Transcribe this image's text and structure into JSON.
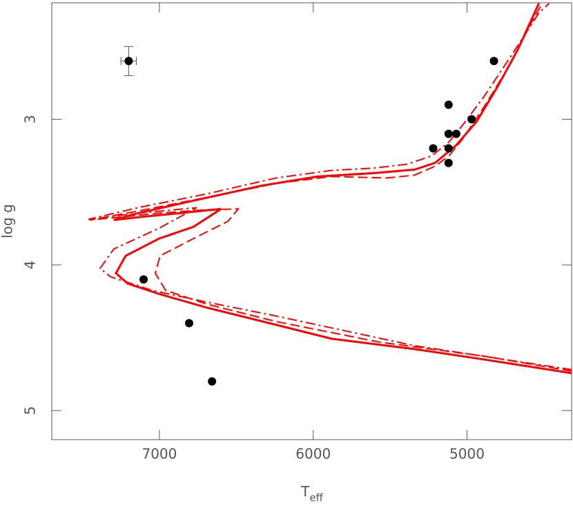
{
  "chart_data": {
    "type": "line",
    "xlabel": "T",
    "xlabel_sub": "eff",
    "ylabel": "log g",
    "xlim": [
      7700,
      4320
    ],
    "ylim": [
      2.2,
      5.2
    ],
    "xticks": [
      7000,
      6000,
      5000
    ],
    "yticks": [
      3,
      4,
      5
    ],
    "series": [
      {
        "color": "#ff0000",
        "style": "solid",
        "x": [
          4317,
          4892,
          5342,
          5881,
          6240,
          6690,
          7004,
          7207,
          7283,
          7220,
          7004,
          6780,
          6600,
          6870,
          7139,
          7297,
          7139,
          6780,
          6330,
          5971,
          5611,
          5342,
          5207,
          5072,
          4937,
          4802,
          4668,
          4533
        ],
        "values": [
          4.744,
          4.649,
          4.578,
          4.507,
          4.412,
          4.294,
          4.199,
          4.128,
          4.057,
          3.938,
          3.82,
          3.739,
          3.616,
          3.645,
          3.673,
          3.692,
          3.645,
          3.559,
          3.455,
          3.393,
          3.37,
          3.346,
          3.299,
          3.18,
          3.014,
          2.777,
          2.517,
          2.204
        ]
      },
      {
        "color": "#ff0000",
        "style": "dashed",
        "x": [
          4317,
          4892,
          5566,
          6241,
          6690,
          6960,
          7027,
          6996,
          6780,
          6555,
          6488,
          6690,
          7004,
          7454,
          7139,
          6690,
          6241,
          5881,
          5521,
          5342,
          5207,
          5117,
          5027,
          4892,
          4713,
          4578,
          4510
        ],
        "values": [
          4.73,
          4.626,
          4.531,
          4.389,
          4.27,
          4.175,
          4.057,
          3.938,
          3.82,
          3.701,
          3.616,
          3.621,
          3.645,
          3.692,
          3.63,
          3.536,
          3.441,
          3.393,
          3.403,
          3.384,
          3.322,
          3.251,
          3.133,
          2.919,
          2.611,
          2.327,
          2.204
        ]
      },
      {
        "color": "#ff0000",
        "style": "dashdot",
        "x": [
          4317,
          5342,
          6241,
          6690,
          7049,
          7319,
          7386,
          7297,
          7004,
          6757,
          7139,
          7463,
          7139,
          6690,
          6241,
          5881,
          5611,
          5387,
          5229,
          5117,
          5027,
          4892,
          4713,
          4533,
          4466
        ],
        "values": [
          4.72,
          4.555,
          4.351,
          4.256,
          4.175,
          4.081,
          4.024,
          3.891,
          3.749,
          3.607,
          3.645,
          3.687,
          3.607,
          3.512,
          3.403,
          3.351,
          3.336,
          3.308,
          3.251,
          3.156,
          3.038,
          2.848,
          2.564,
          2.27,
          2.204
        ]
      }
    ],
    "points": {
      "color": "#000000",
      "x": [
        4825,
        5120,
        4970,
        5120,
        5070,
        5220,
        5120,
        5120,
        7103,
        6807,
        6658
      ],
      "values": [
        2.6,
        2.9,
        3.0,
        3.1,
        3.1,
        3.2,
        3.2,
        3.3,
        4.1,
        4.4,
        4.8
      ]
    },
    "errorbar": {
      "color": "#000000",
      "x": 7200,
      "y": 2.6,
      "xerr": 50,
      "yerr": 0.1
    }
  }
}
